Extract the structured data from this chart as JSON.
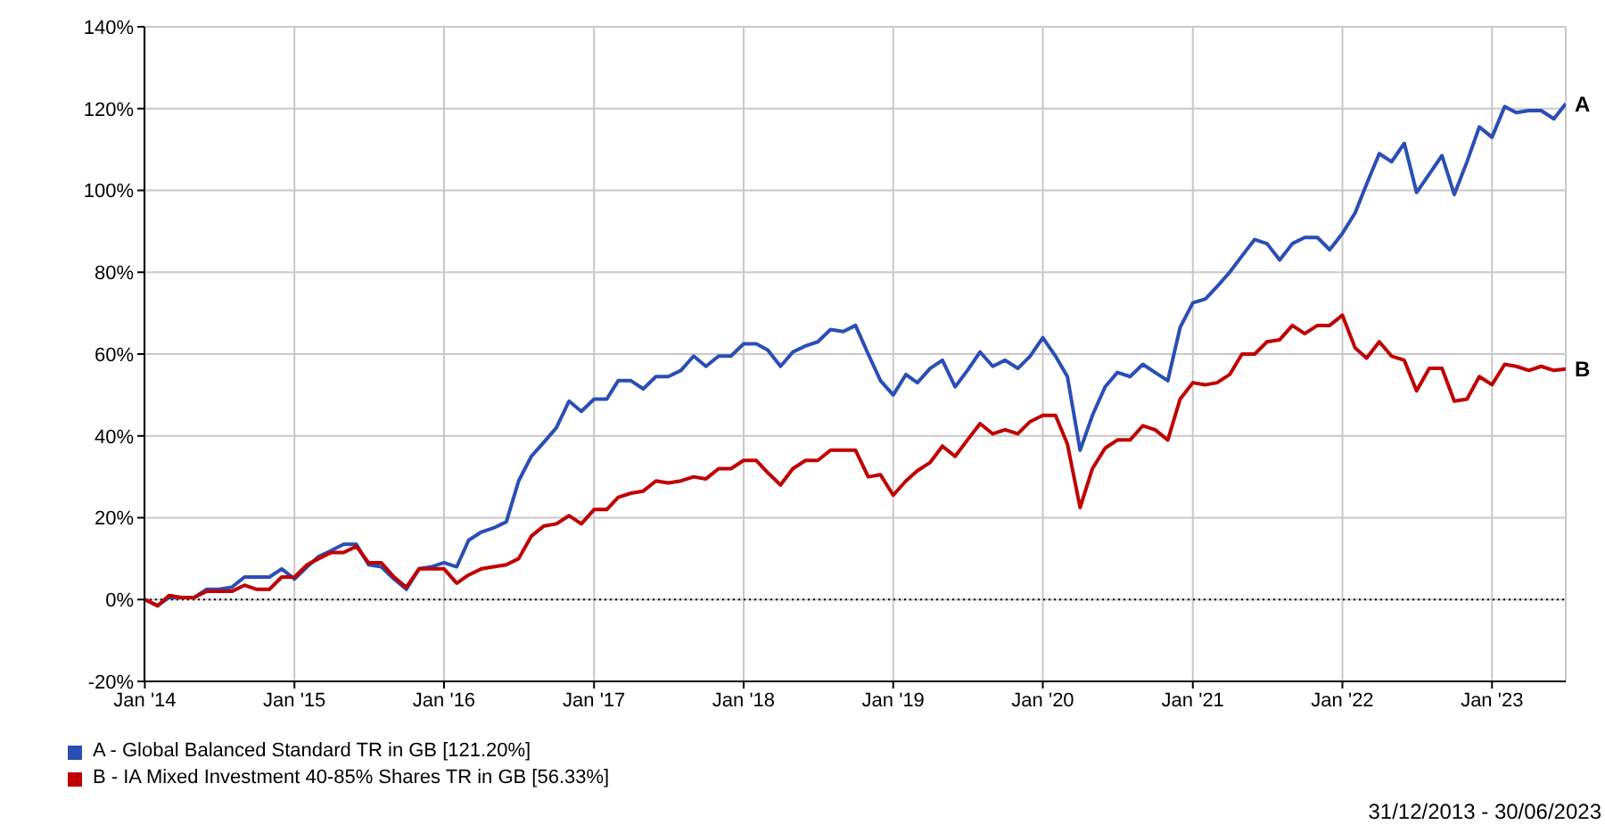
{
  "chart_data": {
    "type": "line",
    "x": [
      "2014-01",
      "2014-02",
      "2014-03",
      "2014-04",
      "2014-05",
      "2014-06",
      "2014-07",
      "2014-08",
      "2014-09",
      "2014-10",
      "2014-11",
      "2014-12",
      "2015-01",
      "2015-02",
      "2015-03",
      "2015-04",
      "2015-05",
      "2015-06",
      "2015-07",
      "2015-08",
      "2015-09",
      "2015-10",
      "2015-11",
      "2015-12",
      "2016-01",
      "2016-02",
      "2016-03",
      "2016-04",
      "2016-05",
      "2016-06",
      "2016-07",
      "2016-08",
      "2016-09",
      "2016-10",
      "2016-11",
      "2016-12",
      "2017-01",
      "2017-02",
      "2017-03",
      "2017-04",
      "2017-05",
      "2017-06",
      "2017-07",
      "2017-08",
      "2017-09",
      "2017-10",
      "2017-11",
      "2017-12",
      "2018-01",
      "2018-02",
      "2018-03",
      "2018-04",
      "2018-05",
      "2018-06",
      "2018-07",
      "2018-08",
      "2018-09",
      "2018-10",
      "2018-11",
      "2018-12",
      "2019-01",
      "2019-02",
      "2019-03",
      "2019-04",
      "2019-05",
      "2019-06",
      "2019-07",
      "2019-08",
      "2019-09",
      "2019-10",
      "2019-11",
      "2019-12",
      "2020-01",
      "2020-02",
      "2020-03",
      "2020-04",
      "2020-05",
      "2020-06",
      "2020-07",
      "2020-08",
      "2020-09",
      "2020-10",
      "2020-11",
      "2020-12",
      "2021-01",
      "2021-02",
      "2021-03",
      "2021-04",
      "2021-05",
      "2021-06",
      "2021-07",
      "2021-08",
      "2021-09",
      "2021-10",
      "2021-11",
      "2021-12",
      "2022-01",
      "2022-02",
      "2022-03",
      "2022-04",
      "2022-05",
      "2022-06",
      "2022-07",
      "2022-08",
      "2022-09",
      "2022-10",
      "2022-11",
      "2022-12",
      "2023-01",
      "2023-02",
      "2023-03",
      "2023-04",
      "2023-05",
      "2023-06",
      "2023-06-30"
    ],
    "series": [
      {
        "name": "A - Global Balanced Standard TR in GB [121.20%]",
        "color": "#2a4eb5",
        "values": [
          0,
          -1.5,
          0.5,
          0.5,
          0.5,
          2.5,
          2.5,
          3,
          5.5,
          5.5,
          5.5,
          7.5,
          5,
          8,
          10.5,
          12,
          13.5,
          13.5,
          8.5,
          8,
          5,
          2.5,
          7.5,
          8,
          9,
          8,
          14.5,
          16.5,
          17.5,
          19,
          29,
          35,
          38.5,
          42,
          48.5,
          46,
          49,
          49,
          53.5,
          53.5,
          51.5,
          54.5,
          54.5,
          56,
          59.5,
          57,
          59.5,
          59.5,
          62.5,
          62.5,
          61,
          57,
          60.5,
          62,
          63,
          66,
          65.5,
          67,
          60,
          53.5,
          50,
          55,
          53,
          56.5,
          58.5,
          52,
          56,
          60.5,
          57,
          58.5,
          56.5,
          59.5,
          64,
          59.5,
          54.5,
          36.5,
          45,
          52,
          55.5,
          54.5,
          57.5,
          55.5,
          53.5,
          66.5,
          72.5,
          73.5,
          76.5,
          80,
          84,
          88,
          87,
          83,
          87,
          88.5,
          88.5,
          85.5,
          89.5,
          94.5,
          101.5,
          109,
          107,
          111.5,
          99.5,
          104,
          108.5,
          99,
          107,
          115.5,
          113,
          120.5,
          119,
          119.5,
          119.5,
          117.5,
          121.2
        ]
      },
      {
        "name": "B - IA Mixed Investment 40-85% Shares TR in GB [56.33%]",
        "color": "#c00000",
        "values": [
          0,
          -1.5,
          1,
          0.5,
          0.5,
          2,
          2,
          2,
          3.5,
          2.5,
          2.5,
          5.5,
          5.5,
          8.5,
          10,
          11.5,
          11.5,
          13,
          9,
          9,
          5.5,
          3,
          7.5,
          7.5,
          7.5,
          4,
          6,
          7.5,
          8,
          8.5,
          10,
          15.5,
          18,
          18.5,
          20.5,
          18.5,
          22,
          22,
          25,
          26,
          26.5,
          29,
          28.5,
          29,
          30,
          29.5,
          32,
          32,
          34,
          34,
          31,
          28,
          32,
          34,
          34,
          36.5,
          36.5,
          36.5,
          30,
          30.5,
          25.5,
          29,
          31.5,
          33.5,
          37.5,
          35,
          39,
          43,
          40.5,
          41.5,
          40.5,
          43.5,
          45,
          45,
          38,
          22.5,
          32,
          37,
          39,
          39,
          42.5,
          41.5,
          39,
          49,
          53,
          52.5,
          53,
          55,
          60,
          60,
          63,
          63.5,
          67,
          65,
          67,
          67,
          69.5,
          61.5,
          59,
          63,
          59.5,
          58.5,
          51,
          56.5,
          56.5,
          48.5,
          49,
          54.5,
          52.5,
          57.5,
          57,
          56,
          57,
          56,
          56.33
        ]
      }
    ],
    "xlim": [
      "2013-12-31",
      "2023-06-30"
    ],
    "xticks": [
      {
        "value": "2014-01-01",
        "label": "Jan '14"
      },
      {
        "value": "2015-01-01",
        "label": "Jan '15"
      },
      {
        "value": "2016-01-01",
        "label": "Jan '16"
      },
      {
        "value": "2017-01-01",
        "label": "Jan '17"
      },
      {
        "value": "2018-01-01",
        "label": "Jan '18"
      },
      {
        "value": "2019-01-01",
        "label": "Jan '19"
      },
      {
        "value": "2020-01-01",
        "label": "Jan '20"
      },
      {
        "value": "2021-01-01",
        "label": "Jan '21"
      },
      {
        "value": "2022-01-01",
        "label": "Jan '22"
      },
      {
        "value": "2023-01-01",
        "label": "Jan '23"
      }
    ],
    "ylim": [
      -20,
      140
    ],
    "yticks": [
      {
        "value": -20,
        "label": "-20%"
      },
      {
        "value": 0,
        "label": "0%"
      },
      {
        "value": 20,
        "label": "20%"
      },
      {
        "value": 40,
        "label": "40%"
      },
      {
        "value": 60,
        "label": "60%"
      },
      {
        "value": 80,
        "label": "80%"
      },
      {
        "value": 100,
        "label": "100%"
      },
      {
        "value": 120,
        "label": "120%"
      },
      {
        "value": 140,
        "label": "140%"
      }
    ],
    "grid": true,
    "legend": "bottom left",
    "marker": "none",
    "line_style": "solid",
    "ref_lines": [
      {
        "axis": "y",
        "value": 0,
        "color": "#000000",
        "line_style": "dotted"
      }
    ],
    "annotations": [
      {
        "text": "A",
        "x": "2023-06-30",
        "y": 121.2
      },
      {
        "text": "B",
        "x": "2023-06-30",
        "y": 56.33
      },
      "31/12/2013 - 30/06/2023"
    ]
  }
}
